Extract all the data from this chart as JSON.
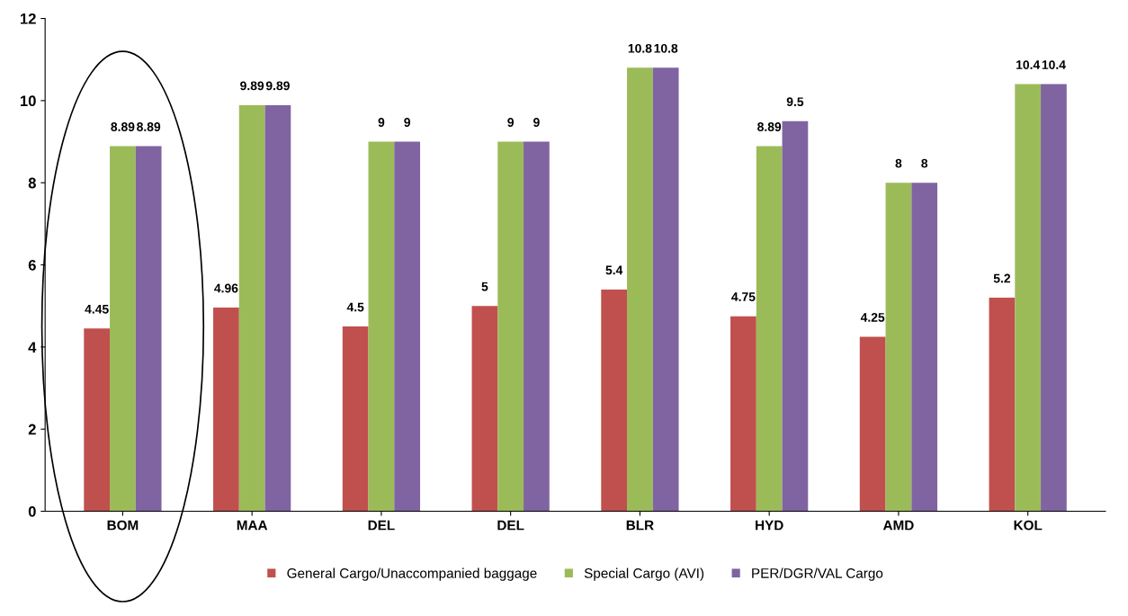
{
  "chart_data": {
    "type": "bar",
    "categories": [
      "BOM",
      "MAA",
      "DEL",
      "DEL",
      "BLR",
      "HYD",
      "AMD",
      "KOL"
    ],
    "series": [
      {
        "name": "General Cargo/Unaccompanied baggage",
        "color": "#c0504d",
        "values": [
          4.45,
          4.96,
          4.5,
          5,
          5.4,
          4.75,
          4.25,
          5.2
        ]
      },
      {
        "name": "Special Cargo (AVI)",
        "color": "#9bbb59",
        "values": [
          8.89,
          9.89,
          9,
          9,
          10.8,
          8.89,
          8,
          10.4
        ]
      },
      {
        "name": "PER/DGR/VAL Cargo",
        "color": "#8064a2",
        "values": [
          8.89,
          9.89,
          9,
          9,
          10.8,
          9.5,
          8,
          10.4
        ]
      }
    ],
    "ylim": [
      0,
      12
    ],
    "yticks": [
      0,
      2,
      4,
      6,
      8,
      10,
      12
    ],
    "data_labels": true,
    "legend": "bottom",
    "grid": false
  }
}
